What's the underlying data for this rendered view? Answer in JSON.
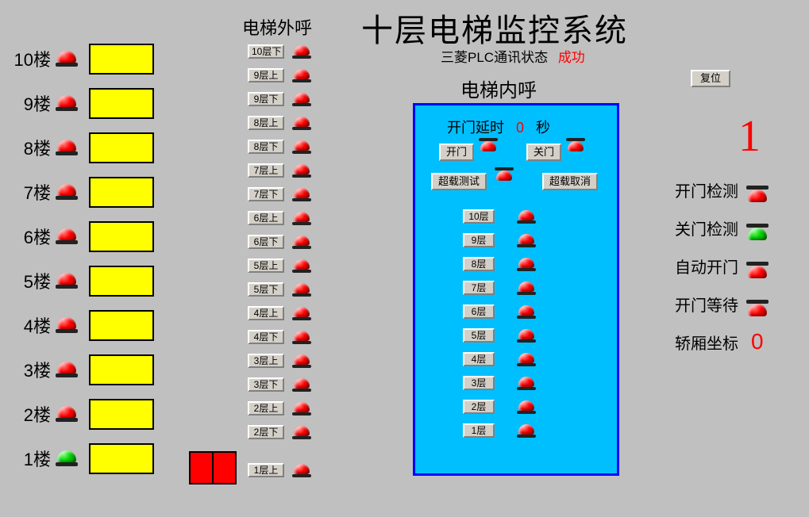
{
  "title": "十层电梯监控系统",
  "hall_call_header": "电梯外呼",
  "plc_status_label": "三菱PLC通讯状态",
  "plc_status_value": "成功",
  "car_call_header": "电梯内呼",
  "reset_button": "复位",
  "door_delay_label_pre": "开门延时",
  "door_delay_value": "0",
  "door_delay_label_post": "秒",
  "open_door_btn": "开门",
  "close_door_btn": "关门",
  "overload_test_btn": "超载测试",
  "overload_cancel_btn": "超载取消",
  "current_floor_display": "1",
  "status": {
    "open_detect": "开门检测",
    "close_detect": "关门检测",
    "auto_open": "自动开门",
    "open_wait": "开门等待",
    "car_coord_label": "轿厢坐标",
    "car_coord_value": "0"
  },
  "floors": [
    {
      "label": "10楼",
      "lamp": "red"
    },
    {
      "label": "9楼",
      "lamp": "red"
    },
    {
      "label": "8楼",
      "lamp": "red"
    },
    {
      "label": "7楼",
      "lamp": "red"
    },
    {
      "label": "6楼",
      "lamp": "red"
    },
    {
      "label": "5楼",
      "lamp": "red"
    },
    {
      "label": "4楼",
      "lamp": "red"
    },
    {
      "label": "3楼",
      "lamp": "red"
    },
    {
      "label": "2楼",
      "lamp": "red"
    },
    {
      "label": "1楼",
      "lamp": "green"
    }
  ],
  "hall_calls": [
    {
      "label": "10层下",
      "lamp": "red"
    },
    {
      "label": "9层上",
      "lamp": "red"
    },
    {
      "label": "9层下",
      "lamp": "red"
    },
    {
      "label": "8层上",
      "lamp": "red"
    },
    {
      "label": "8层下",
      "lamp": "red"
    },
    {
      "label": "7层上",
      "lamp": "red"
    },
    {
      "label": "7层下",
      "lamp": "red"
    },
    {
      "label": "6层上",
      "lamp": "red"
    },
    {
      "label": "6层下",
      "lamp": "red"
    },
    {
      "label": "5层上",
      "lamp": "red"
    },
    {
      "label": "5层下",
      "lamp": "red"
    },
    {
      "label": "4层上",
      "lamp": "red"
    },
    {
      "label": "4层下",
      "lamp": "red"
    },
    {
      "label": "3层上",
      "lamp": "red"
    },
    {
      "label": "3层下",
      "lamp": "red"
    },
    {
      "label": "2层上",
      "lamp": "red"
    },
    {
      "label": "2层下",
      "lamp": "red"
    },
    {
      "label": "1层上",
      "lamp": "red"
    }
  ],
  "hall_gap_after_index": 16,
  "car_floors": [
    {
      "label": "10层",
      "lamp": "red"
    },
    {
      "label": "9层",
      "lamp": "red"
    },
    {
      "label": "8层",
      "lamp": "red"
    },
    {
      "label": "7层",
      "lamp": "red"
    },
    {
      "label": "6层",
      "lamp": "red"
    },
    {
      "label": "5层",
      "lamp": "red"
    },
    {
      "label": "4层",
      "lamp": "red"
    },
    {
      "label": "3层",
      "lamp": "red"
    },
    {
      "label": "2层",
      "lamp": "red"
    },
    {
      "label": "1层",
      "lamp": "red"
    }
  ],
  "status_lamps": {
    "open_detect": "red",
    "close_detect": "green",
    "auto_open": "red",
    "open_wait": "red"
  },
  "colors": {
    "bg": "#c0c0c0",
    "panel_bg": "#00bfff",
    "panel_border": "#0000ff",
    "yellow": "#ffff00",
    "red": "#ff0000",
    "green": "#00d000"
  }
}
